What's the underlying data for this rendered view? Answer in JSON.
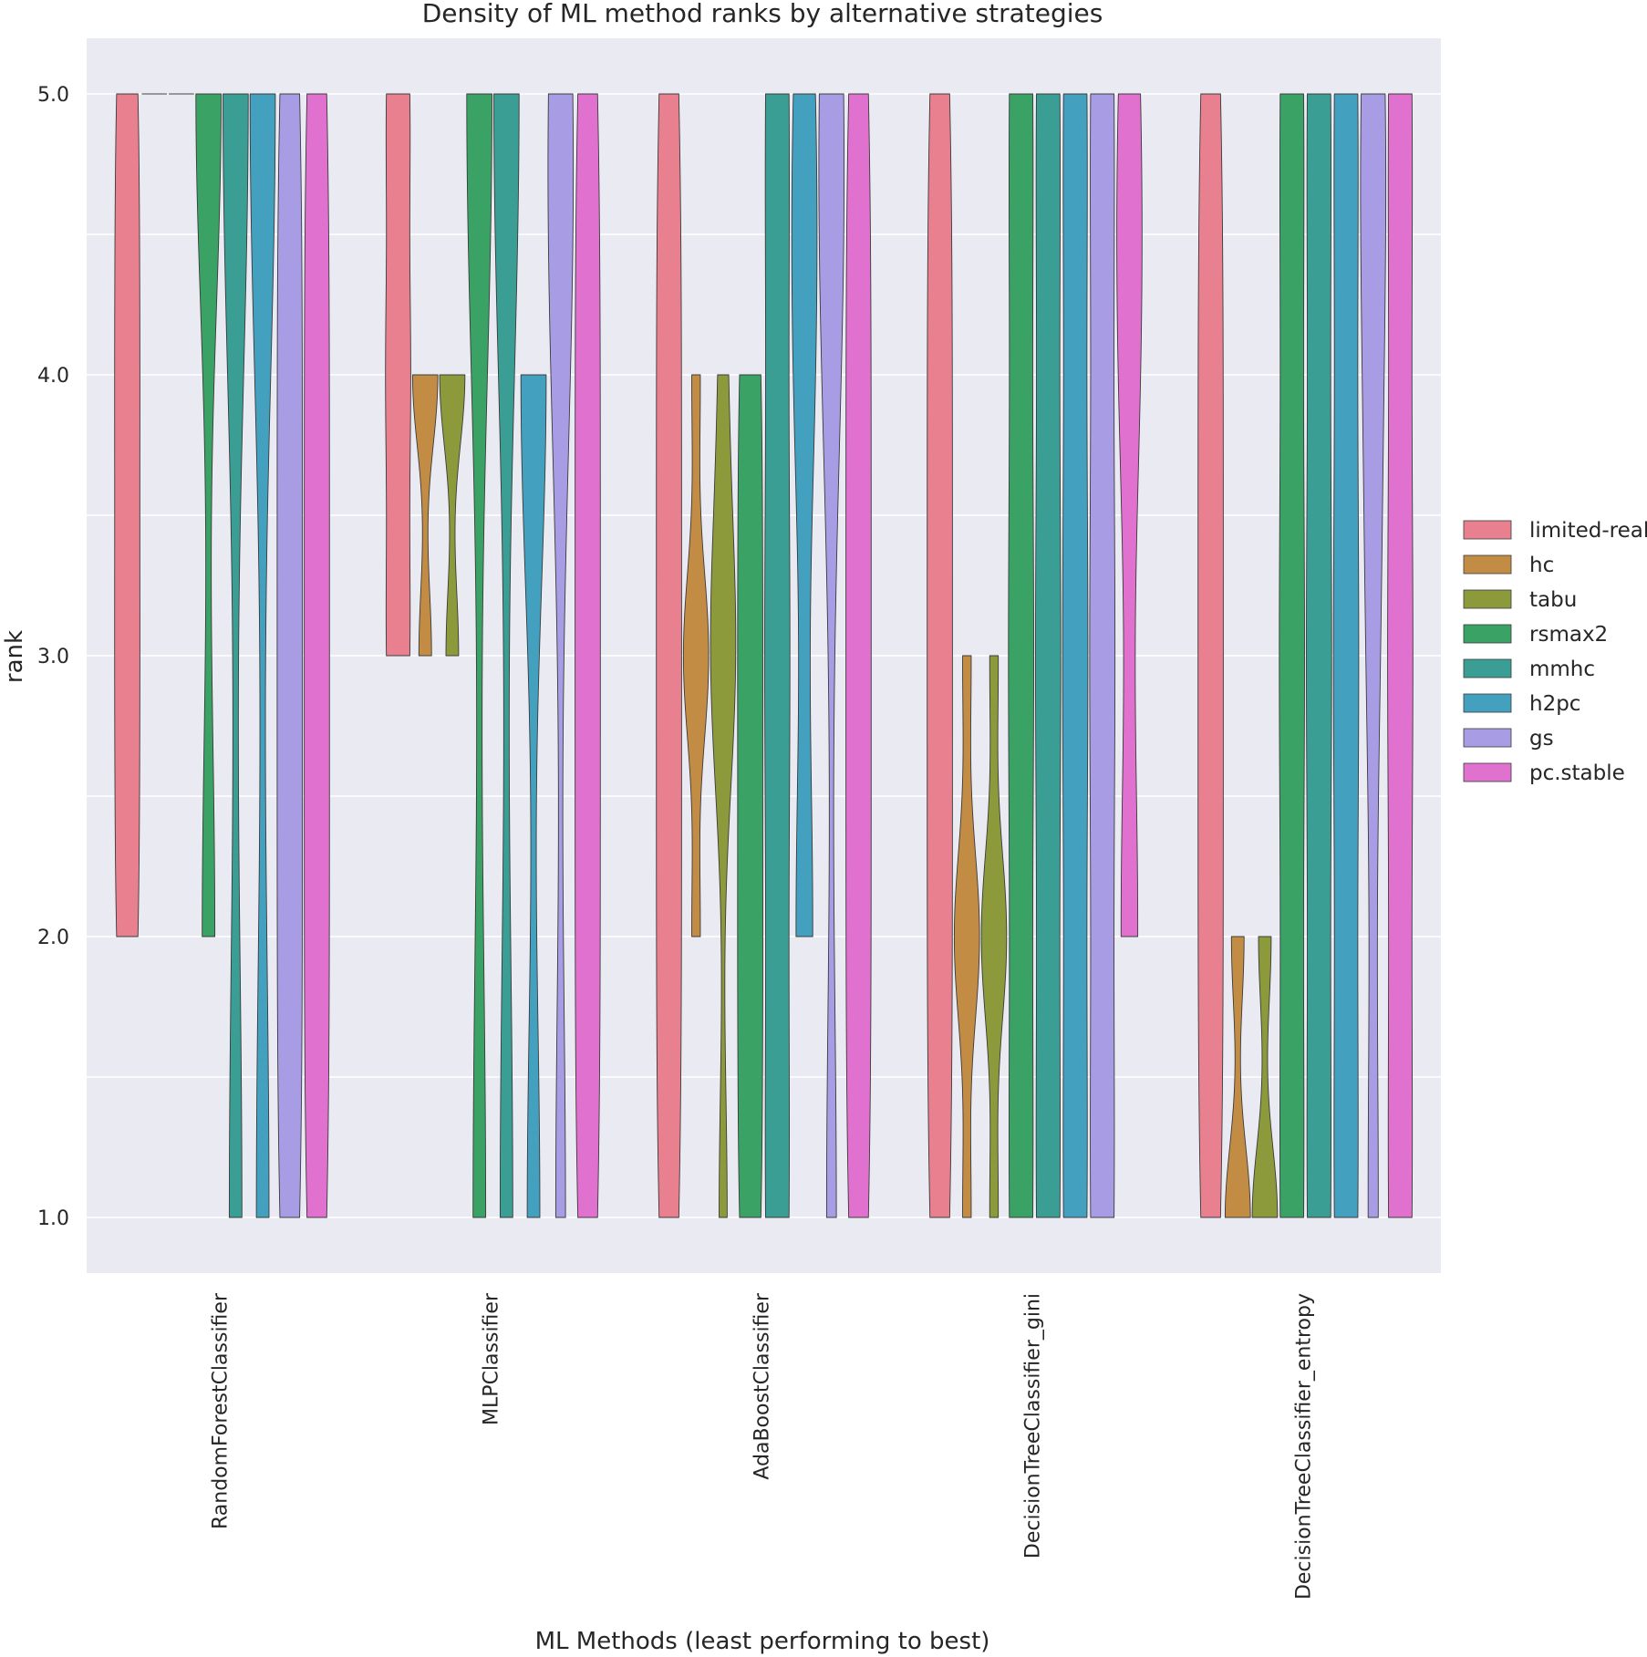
{
  "chart_data": {
    "type": "violin",
    "title": "Density of ML method ranks by alternative strategies",
    "xlabel": "ML Methods (least performing to best)",
    "ylabel": "rank",
    "ylim": [
      0.8,
      5.2
    ],
    "yticks": [
      1.0,
      2.0,
      3.0,
      4.0,
      5.0
    ],
    "ytick_labels": [
      "1.0",
      "2.0",
      "3.0",
      "4.0",
      "5.0"
    ],
    "categories": [
      "RandomForestClassifier",
      "MLPClassifier",
      "AdaBoostClassifier",
      "DecisionTreeClassifier_gini",
      "DecisionTreeClassifier_entropy"
    ],
    "legend": {
      "position": "right-center"
    },
    "series": [
      {
        "name": "limited-real",
        "color": "#e8808f",
        "ranks": [
          [
            2,
            3,
            4,
            5
          ],
          [
            3,
            4,
            5
          ],
          [
            1,
            2,
            3,
            4,
            5
          ],
          [
            1,
            2,
            3,
            4,
            5
          ],
          [
            1,
            2,
            3,
            4,
            5
          ]
        ]
      },
      {
        "name": "hc",
        "color": "#c28c45",
        "ranks": [
          [
            5,
            5,
            5
          ],
          [
            3,
            4,
            4
          ],
          [
            2,
            3,
            3,
            3,
            4
          ],
          [
            1,
            2,
            2,
            2,
            3
          ],
          [
            1,
            1,
            2
          ]
        ]
      },
      {
        "name": "tabu",
        "color": "#8c9a3c",
        "ranks": [
          [
            5,
            5,
            5
          ],
          [
            3,
            4,
            4
          ],
          [
            1,
            3,
            3,
            3,
            4
          ],
          [
            1,
            2,
            2,
            2,
            3
          ],
          [
            1,
            1,
            2
          ]
        ]
      },
      {
        "name": "rsmax2",
        "color": "#3ba265",
        "ranks": [
          [
            2,
            5,
            5
          ],
          [
            1,
            5,
            5
          ],
          [
            1,
            2,
            3,
            4
          ],
          [
            1,
            3,
            5
          ],
          [
            1,
            3,
            5
          ]
        ]
      },
      {
        "name": "mmhc",
        "color": "#3a9e94",
        "ranks": [
          [
            1,
            5,
            5
          ],
          [
            1,
            5,
            5
          ],
          [
            1,
            3,
            5
          ],
          [
            1,
            3,
            5
          ],
          [
            1,
            3,
            5
          ]
        ]
      },
      {
        "name": "h2pc",
        "color": "#44a0bf",
        "ranks": [
          [
            1,
            5,
            5
          ],
          [
            1,
            4,
            4
          ],
          [
            2,
            4,
            5
          ],
          [
            1,
            3,
            5
          ],
          [
            1,
            3,
            5
          ]
        ]
      },
      {
        "name": "gs",
        "color": "#a89de5",
        "ranks": [
          [
            1,
            2,
            3,
            4,
            5
          ],
          [
            1,
            4,
            5,
            5
          ],
          [
            1,
            4,
            5,
            5
          ],
          [
            1,
            3,
            5
          ],
          [
            1,
            3,
            4,
            5,
            5
          ]
        ]
      },
      {
        "name": "pc.stable",
        "color": "#e071cf",
        "ranks": [
          [
            1,
            2,
            3,
            4,
            5
          ],
          [
            1,
            2,
            3,
            4,
            5
          ],
          [
            1,
            2,
            3,
            4,
            5
          ],
          [
            2,
            4,
            5
          ],
          [
            1,
            3,
            5
          ]
        ]
      }
    ]
  }
}
